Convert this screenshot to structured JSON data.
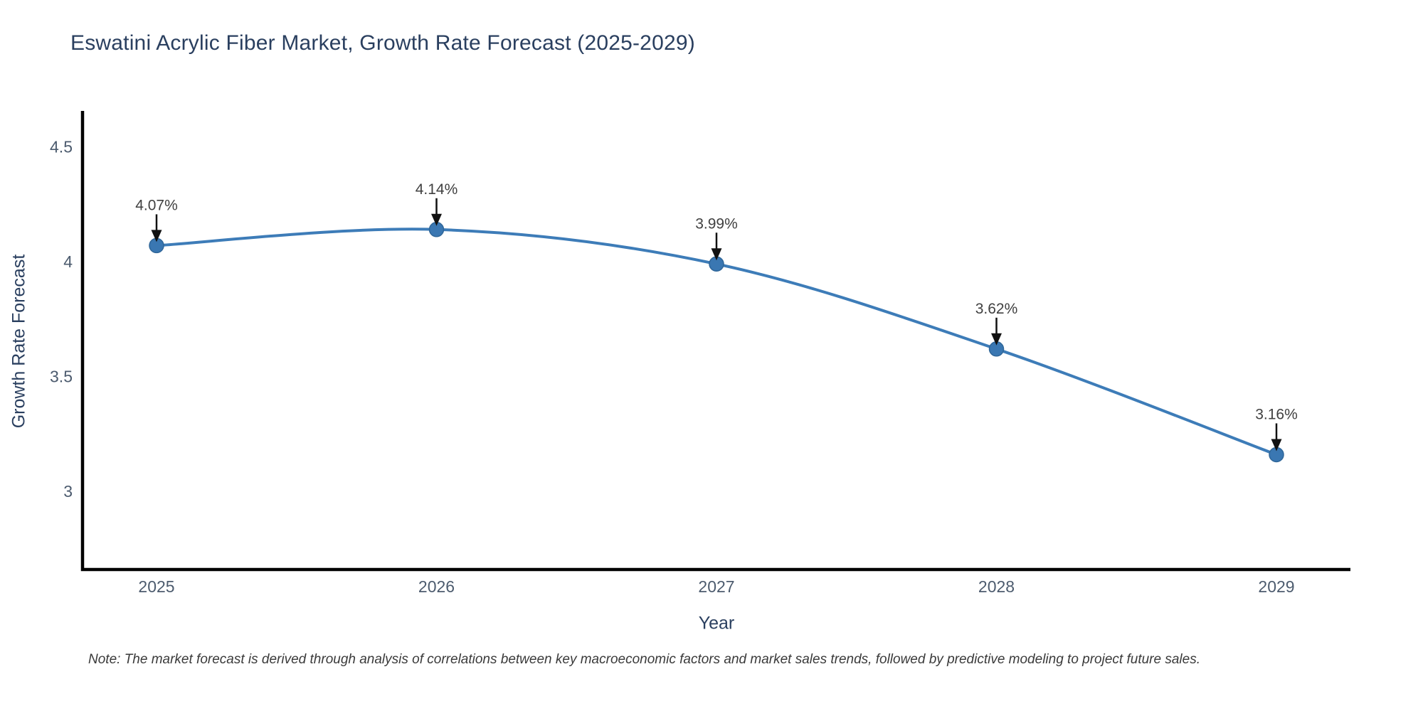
{
  "note": "Note: The market forecast is derived through analysis of correlations between key macroeconomic factors and market sales trends, followed by predictive modeling to project future sales.",
  "chart_data": {
    "type": "line",
    "title": "Eswatini Acrylic Fiber Market, Growth Rate Forecast (2025-2029)",
    "xlabel": "Year",
    "ylabel": "Growth Rate Forecast",
    "x": [
      "2025",
      "2026",
      "2027",
      "2028",
      "2029"
    ],
    "series": [
      {
        "name": "Growth Rate Forecast",
        "values": [
          4.07,
          4.14,
          3.99,
          3.62,
          3.16
        ],
        "point_labels": [
          "4.07%",
          "4.14%",
          "3.99%",
          "3.62%",
          "3.16%"
        ]
      }
    ],
    "ylim": [
      2.66,
      4.65
    ],
    "ytick_values": [
      3,
      3.5,
      4,
      4.5
    ],
    "ytick_labels": [
      "3",
      "3.5",
      "4",
      "4.5"
    ],
    "grid": false,
    "legend": null,
    "line_shape": "spline",
    "annotation_arrows": true,
    "colors": {
      "line": "#3d7cb8",
      "marker_fill": "#3a77b2",
      "marker_edge": "#2f6699",
      "axis": "#000000",
      "tick_label": "#4c5b6e",
      "annotation_text": "#404040",
      "annotation_arrow": "#111111",
      "title_text": "#2a3f5f",
      "background": "#ffffff"
    }
  }
}
